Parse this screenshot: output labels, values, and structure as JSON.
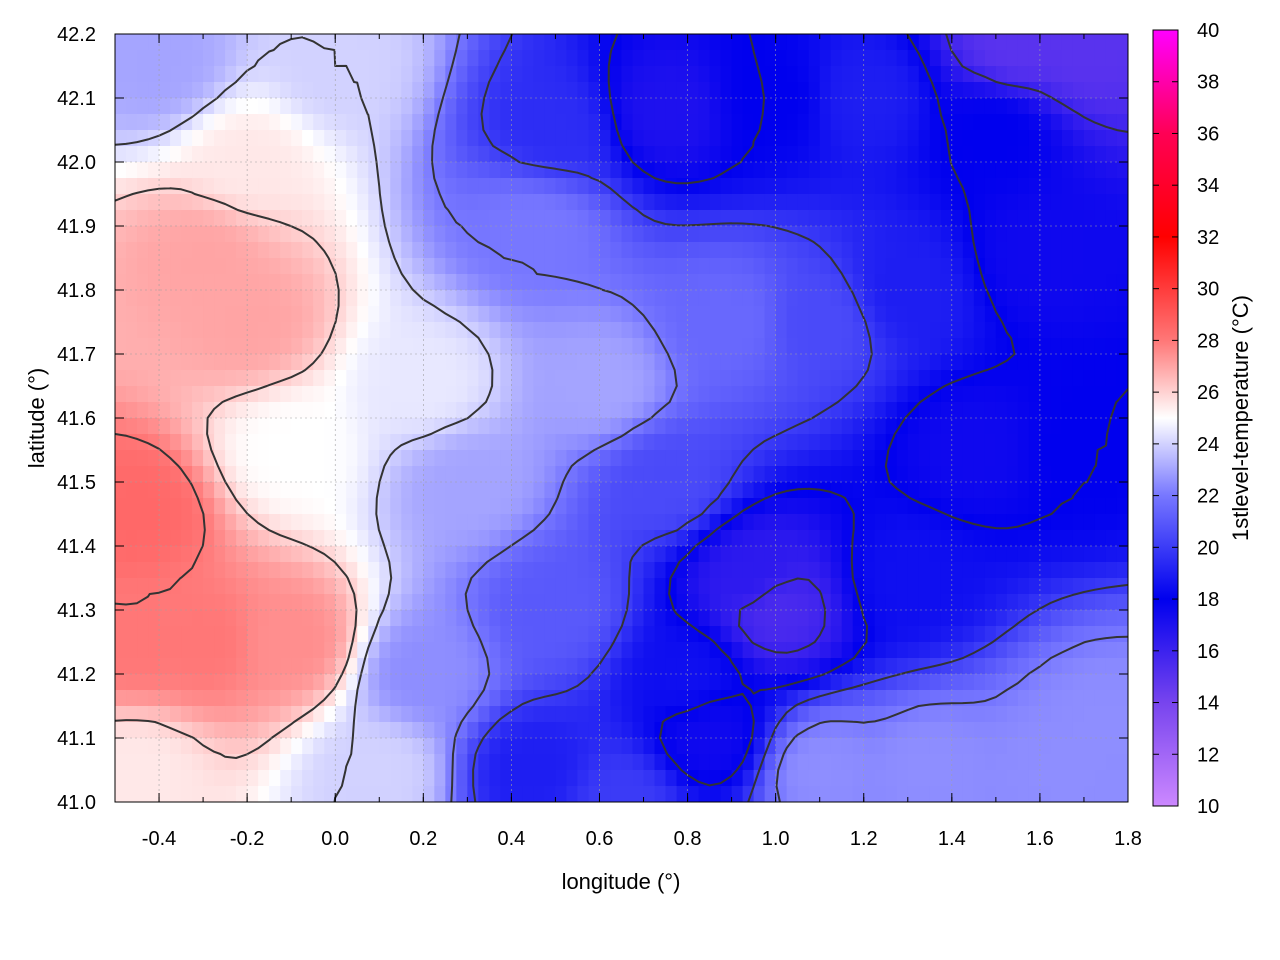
{
  "chart_data": {
    "type": "heatmap",
    "title": "",
    "xlabel": "longitude (°)",
    "ylabel": "latitude (°)",
    "colorbar_label": "1stlevel-temperature (°C)",
    "xlim": [
      -0.5,
      1.8
    ],
    "ylim": [
      41.0,
      42.2
    ],
    "x_ticks": [
      "-0.4",
      "-0.2",
      "0.0",
      "0.2",
      "0.4",
      "0.6",
      "0.8",
      "1.0",
      "1.2",
      "1.4",
      "1.6",
      "1.8"
    ],
    "y_ticks": [
      "41.0",
      "41.1",
      "41.2",
      "41.3",
      "41.4",
      "41.5",
      "41.6",
      "41.7",
      "41.8",
      "41.9",
      "42.0",
      "42.1",
      "42.2"
    ],
    "colorbar_range": [
      10,
      40
    ],
    "colorbar_ticks": [
      "10",
      "12",
      "14",
      "16",
      "18",
      "20",
      "22",
      "24",
      "26",
      "28",
      "30",
      "32",
      "34",
      "36",
      "38",
      "40"
    ],
    "grid": true,
    "contour_lines": true,
    "colormap": [
      {
        "value": 10,
        "color": "#cc88ff"
      },
      {
        "value": 14,
        "color": "#7744ee"
      },
      {
        "value": 18,
        "color": "#0000ee"
      },
      {
        "value": 22,
        "color": "#7777ff"
      },
      {
        "value": 25,
        "color": "#ffffff"
      },
      {
        "value": 28,
        "color": "#ff7777"
      },
      {
        "value": 32,
        "color": "#ff0000"
      },
      {
        "value": 36,
        "color": "#ff0055"
      },
      {
        "value": 40,
        "color": "#ff00ff"
      }
    ],
    "field_samples": [
      {
        "lon": -0.45,
        "lat": 41.45,
        "temp": 28.5
      },
      {
        "lon": -0.45,
        "lat": 41.25,
        "temp": 28.0
      },
      {
        "lon": -0.3,
        "lat": 41.25,
        "temp": 28.0
      },
      {
        "lon": -0.1,
        "lat": 41.25,
        "temp": 27.5
      },
      {
        "lon": -0.3,
        "lat": 41.85,
        "temp": 27.0
      },
      {
        "lon": -0.2,
        "lat": 41.75,
        "temp": 27.0
      },
      {
        "lon": -0.45,
        "lat": 41.05,
        "temp": 25.5
      },
      {
        "lon": -0.1,
        "lat": 41.55,
        "temp": 25.0
      },
      {
        "lon": 0.2,
        "lat": 41.65,
        "temp": 24.5
      },
      {
        "lon": 0.0,
        "lat": 42.15,
        "temp": 24.0
      },
      {
        "lon": -0.4,
        "lat": 42.15,
        "temp": 23.0
      },
      {
        "lon": 0.3,
        "lat": 41.5,
        "temp": 23.0
      },
      {
        "lon": 0.6,
        "lat": 41.65,
        "temp": 23.0
      },
      {
        "lon": 0.2,
        "lat": 41.2,
        "temp": 22.5
      },
      {
        "lon": 0.45,
        "lat": 41.9,
        "temp": 22.0
      },
      {
        "lon": 0.5,
        "lat": 41.3,
        "temp": 21.0
      },
      {
        "lon": 0.5,
        "lat": 42.05,
        "temp": 19.5
      },
      {
        "lon": 0.75,
        "lat": 41.5,
        "temp": 20.5
      },
      {
        "lon": 0.9,
        "lat": 41.75,
        "temp": 21.5
      },
      {
        "lon": 1.1,
        "lat": 41.75,
        "temp": 20.5
      },
      {
        "lon": 0.8,
        "lat": 41.2,
        "temp": 18.5
      },
      {
        "lon": 0.75,
        "lat": 42.08,
        "temp": 17.0
      },
      {
        "lon": 1.0,
        "lat": 42.1,
        "temp": 18.0
      },
      {
        "lon": 1.2,
        "lat": 42.1,
        "temp": 19.0
      },
      {
        "lon": 1.3,
        "lat": 41.8,
        "temp": 19.0
      },
      {
        "lon": 1.45,
        "lat": 41.55,
        "temp": 17.5
      },
      {
        "lon": 1.6,
        "lat": 41.85,
        "temp": 17.5
      },
      {
        "lon": 1.7,
        "lat": 41.55,
        "temp": 18.0
      },
      {
        "lon": 1.5,
        "lat": 42.05,
        "temp": 18.0
      },
      {
        "lon": 1.55,
        "lat": 42.18,
        "temp": 15.0
      },
      {
        "lon": 1.7,
        "lat": 42.18,
        "temp": 15.0
      },
      {
        "lon": 1.0,
        "lat": 41.3,
        "temp": 15.5
      },
      {
        "lon": 0.95,
        "lat": 41.35,
        "temp": 16.5
      },
      {
        "lon": 0.85,
        "lat": 41.1,
        "temp": 17.5
      },
      {
        "lon": 1.3,
        "lat": 41.35,
        "temp": 18.5
      },
      {
        "lon": 1.1,
        "lat": 41.05,
        "temp": 22.5
      },
      {
        "lon": 1.35,
        "lat": 41.05,
        "temp": 22.5
      },
      {
        "lon": 1.65,
        "lat": 41.05,
        "temp": 22.5
      },
      {
        "lon": 1.75,
        "lat": 41.12,
        "temp": 22.5
      },
      {
        "lon": 0.45,
        "lat": 41.05,
        "temp": 19.0
      },
      {
        "lon": 0.65,
        "lat": 41.0,
        "temp": 20.0
      },
      {
        "lon": 0.1,
        "lat": 41.05,
        "temp": 24.0
      },
      {
        "lon": -0.2,
        "lat": 42.0,
        "temp": 25.5
      }
    ]
  }
}
